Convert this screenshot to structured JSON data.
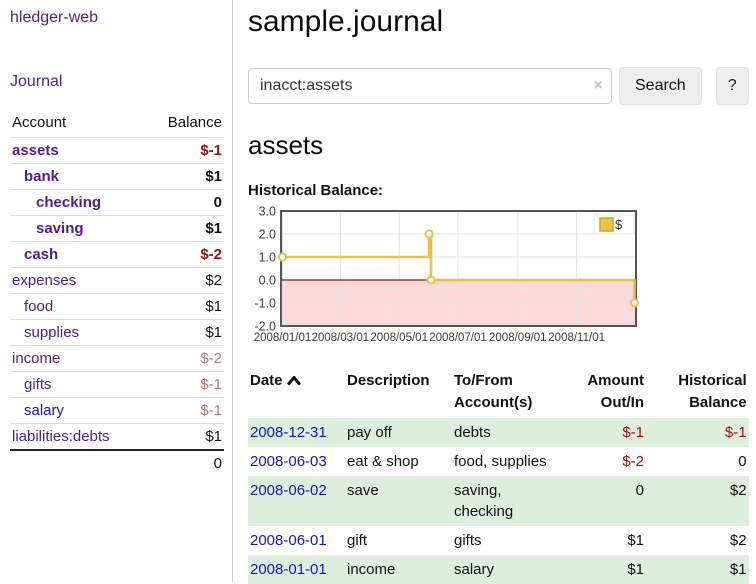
{
  "sidebar": {
    "app_title": "hledger-web",
    "journal_link": "Journal",
    "accounts_header": {
      "account": "Account",
      "balance": "Balance"
    },
    "accounts": [
      {
        "name": "assets",
        "indent": 1,
        "balance": "$-1",
        "bold": true,
        "neg": "strong",
        "link": "purple"
      },
      {
        "name": "bank",
        "indent": 2,
        "balance": "$1",
        "bold": true,
        "neg": "none",
        "link": "purple"
      },
      {
        "name": "checking",
        "indent": 3,
        "balance": "0",
        "bold": true,
        "neg": "none",
        "link": "purple"
      },
      {
        "name": "saving",
        "indent": 3,
        "balance": "$1",
        "bold": true,
        "neg": "none",
        "link": "purple"
      },
      {
        "name": "cash",
        "indent": 2,
        "balance": "$-2",
        "bold": true,
        "neg": "strong",
        "link": "purple"
      },
      {
        "name": "expenses",
        "indent": 1,
        "balance": "$2",
        "bold": false,
        "neg": "none",
        "link": "purple"
      },
      {
        "name": "food",
        "indent": 2,
        "balance": "$1",
        "bold": false,
        "neg": "none",
        "link": "purple"
      },
      {
        "name": "supplies",
        "indent": 2,
        "balance": "$1",
        "bold": false,
        "neg": "none",
        "link": "purple"
      },
      {
        "name": "income",
        "indent": 1,
        "balance": "$-2",
        "bold": false,
        "neg": "soft",
        "link": "purple"
      },
      {
        "name": "gifts",
        "indent": 2,
        "balance": "$-1",
        "bold": false,
        "neg": "soft",
        "link": "purple"
      },
      {
        "name": "salary",
        "indent": 2,
        "balance": "$-1",
        "bold": false,
        "neg": "soft",
        "link": "blue"
      },
      {
        "name": "liabilities:debts",
        "indent": 1,
        "balance": "$1",
        "bold": false,
        "neg": "none",
        "link": "purple"
      }
    ],
    "total": "0"
  },
  "header": {
    "title": "sample.journal"
  },
  "search": {
    "value": "inacct:assets",
    "clear_icon": "×",
    "button_label": "Search",
    "help_label": "?"
  },
  "account_heading": "assets",
  "chart_data": {
    "type": "line-step",
    "title": "Historical Balance:",
    "legend": "$",
    "legend_position": "top-right",
    "grid": true,
    "xlim": [
      "2008-01-01",
      "2008-12-31"
    ],
    "ylim": [
      -2,
      3
    ],
    "yticks": [
      {
        "label": "3.0",
        "value": 3
      },
      {
        "label": "2.0",
        "value": 2
      },
      {
        "label": "1.0",
        "value": 1
      },
      {
        "label": "0.0",
        "value": 0
      },
      {
        "label": "-1.0",
        "value": -1
      },
      {
        "label": "-2.0",
        "value": -2
      }
    ],
    "xticks": [
      "2008/01/01",
      "2008/03/01",
      "2008/05/01",
      "2008/07/01",
      "2008/09/01",
      "2008/11/01"
    ],
    "series": [
      {
        "name": "$",
        "points": [
          [
            "2008-01-01",
            1
          ],
          [
            "2008-06-01",
            2
          ],
          [
            "2008-06-03",
            0
          ],
          [
            "2008-12-31",
            -1
          ]
        ]
      }
    ],
    "colors": {
      "line": "#e9c04a",
      "marker_fill": "#ffffff",
      "negative_region": "#fcdada",
      "zero_line": "#991111",
      "gridline": "#e2e2e2",
      "border": "#545454",
      "legend_swatch": "#edc240",
      "legend_swatch_border": "#c9a227"
    }
  },
  "register": {
    "header": {
      "date": "Date",
      "description": "Description",
      "accounts": "To/From Account(s)",
      "amount": "Amount Out/In",
      "balance": "Historical Balance"
    },
    "rows": [
      {
        "date": "2008-12-31",
        "description": "pay off",
        "accounts": "debts",
        "amount": "$-1",
        "balance": "$-1",
        "amount_neg": true,
        "balance_neg": true,
        "green": true
      },
      {
        "date": "2008-06-03",
        "description": "eat & shop",
        "accounts": "food, supplies",
        "amount": "$-2",
        "balance": "0",
        "amount_neg": true,
        "balance_neg": false,
        "green": false
      },
      {
        "date": "2008-06-02",
        "description": "save",
        "accounts": "saving, checking",
        "amount": "0",
        "balance": "$2",
        "amount_neg": false,
        "balance_neg": false,
        "green": true
      },
      {
        "date": "2008-06-01",
        "description": "gift",
        "accounts": "gifts",
        "amount": "$1",
        "balance": "$2",
        "amount_neg": false,
        "balance_neg": false,
        "green": false
      },
      {
        "date": "2008-01-01",
        "description": "income",
        "accounts": "salary",
        "amount": "$1",
        "balance": "$1",
        "amount_neg": false,
        "balance_neg": false,
        "green": true
      }
    ]
  }
}
